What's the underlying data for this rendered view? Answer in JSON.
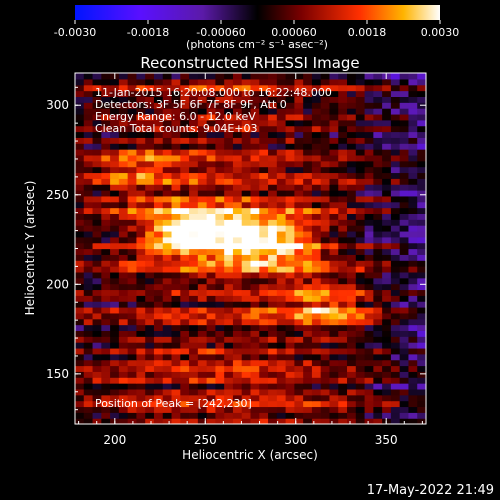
{
  "colorbar": {
    "ticks": [
      "-0.0030",
      "-0.0018",
      "-0.00060",
      "0.00060",
      "0.0018",
      "0.0030"
    ],
    "unit_label": "(photons cm⁻² s⁻¹ asec⁻²)"
  },
  "annotations": {
    "time_range": "11-Jan-2015 16:20:08.000 to 16:22:48.000",
    "detectors": "Detectors: 3F 5F 6F 7F 8F 9F, Att 0",
    "energy": "Energy Range: 6.0 - 12.0 keV",
    "clean": "Clean      Total counts: 9.04E+03",
    "peak": "Position of Peak = [242,230]",
    "timestamp": "17-May-2022 21:49"
  },
  "chart_data": {
    "type": "heatmap",
    "title": "Reconstructed RHESSI Image",
    "xlabel": "Heliocentric X (arcsec)",
    "ylabel": "Heliocentric Y (arcsec)",
    "x_ticks": [
      "200",
      "250",
      "300",
      "350"
    ],
    "y_ticks": [
      "150",
      "200",
      "250",
      "300"
    ],
    "xlim": [
      178,
      372
    ],
    "ylim": [
      122,
      318
    ],
    "color_range": [
      -0.003,
      0.003
    ],
    "peak_position": [
      242,
      230
    ],
    "sources": [
      {
        "x": 242,
        "y": 230,
        "amplitude": 0.003
      },
      {
        "x": 285,
        "y": 225,
        "amplitude": 0.0026
      },
      {
        "x": 318,
        "y": 190,
        "amplitude": 0.0016
      },
      {
        "x": 210,
        "y": 265,
        "amplitude": 0.001
      }
    ]
  }
}
